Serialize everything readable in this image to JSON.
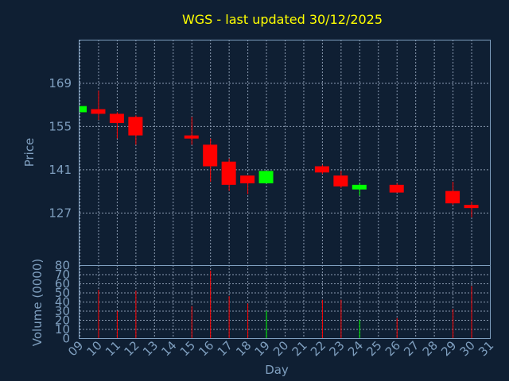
{
  "chart_data": {
    "type": "candlestick",
    "title": "WGS - last updated 30/12/2025",
    "xlabel": "Day",
    "ylabel_price": "Price",
    "ylabel_volume": "Volume (0000)",
    "x_ticks": [
      "09",
      "10",
      "11",
      "12",
      "13",
      "14",
      "15",
      "16",
      "17",
      "18",
      "19",
      "20",
      "21",
      "22",
      "23",
      "24",
      "25",
      "26",
      "27",
      "28",
      "29",
      "30",
      "31"
    ],
    "price_ticks": [
      127,
      141,
      155,
      169
    ],
    "price_ylim": [
      110,
      183
    ],
    "volume_ticks": [
      0,
      10,
      20,
      30,
      40,
      50,
      60,
      70,
      80
    ],
    "volume_ylim": [
      0,
      80
    ],
    "grid": true,
    "colors": {
      "up": "#00ff00",
      "down": "#ff0000",
      "title": "#ffff00",
      "axis": "#7f9fbf"
    },
    "candles": [
      {
        "day": 9,
        "open": 159.5,
        "close": 161.5,
        "high": 161.5,
        "low": 159.5,
        "volume": 0
      },
      {
        "day": 10,
        "open": 160.5,
        "close": 159.0,
        "high": 166.5,
        "low": 157.0,
        "volume": 53
      },
      {
        "day": 11,
        "open": 159.0,
        "close": 156.0,
        "high": 159.5,
        "low": 151.0,
        "volume": 30
      },
      {
        "day": 12,
        "open": 158.0,
        "close": 152.0,
        "high": 158.5,
        "low": 149.0,
        "volume": 52
      },
      {
        "day": 15,
        "open": 152.0,
        "close": 151.0,
        "high": 158.0,
        "low": 149.0,
        "volume": 35
      },
      {
        "day": 16,
        "open": 149.0,
        "close": 142.0,
        "high": 151.0,
        "low": 137.0,
        "volume": 74
      },
      {
        "day": 17,
        "open": 143.5,
        "close": 136.0,
        "high": 144.5,
        "low": 134.0,
        "volume": 46
      },
      {
        "day": 18,
        "open": 139.0,
        "close": 136.5,
        "high": 139.0,
        "low": 133.0,
        "volume": 38
      },
      {
        "day": 19,
        "open": 136.5,
        "close": 140.5,
        "high": 140.5,
        "low": 136.5,
        "volume": 30
      },
      {
        "day": 22,
        "open": 142.0,
        "close": 140.0,
        "high": 142.5,
        "low": 139.5,
        "volume": 42
      },
      {
        "day": 23,
        "open": 139.0,
        "close": 135.5,
        "high": 140.5,
        "low": 135.0,
        "volume": 42
      },
      {
        "day": 24,
        "open": 134.5,
        "close": 136.0,
        "high": 136.5,
        "low": 132.5,
        "volume": 20
      },
      {
        "day": 26,
        "open": 136.0,
        "close": 133.5,
        "high": 136.5,
        "low": 133.5,
        "volume": 22
      },
      {
        "day": 29,
        "open": 134.0,
        "close": 130.0,
        "high": 137.0,
        "low": 129.5,
        "volume": 32
      },
      {
        "day": 30,
        "open": 129.5,
        "close": 128.5,
        "high": 130.5,
        "low": 125.5,
        "volume": 57
      }
    ]
  }
}
